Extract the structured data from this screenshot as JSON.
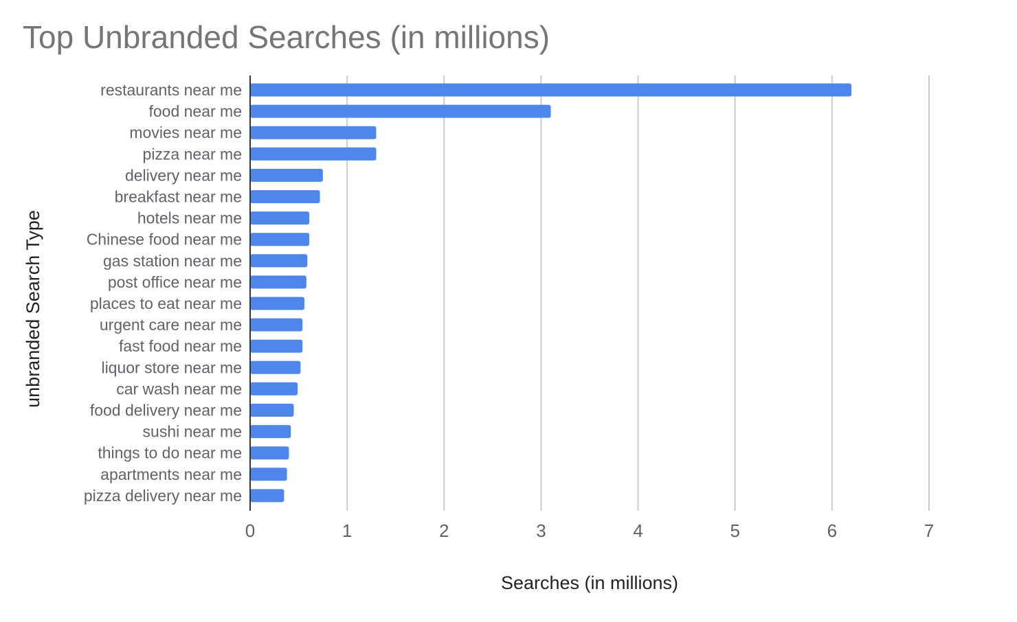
{
  "chart_data": {
    "type": "bar",
    "orientation": "horizontal",
    "title": "Top Unbranded Searches (in millions)",
    "xlabel": "Searches (in millions)",
    "ylabel": "unbranded Search Type",
    "categories": [
      "restaurants near me",
      "food near me",
      "movies near me",
      "pizza near me",
      "delivery near me",
      "breakfast near me",
      "hotels near me",
      "Chinese food near me",
      "gas station near me",
      "post office near me",
      "places to eat near me",
      "urgent care near me",
      "fast food near me",
      "liquor store near me",
      "car wash near me",
      "food delivery near me",
      "sushi near me",
      "things to do near me",
      "apartments near me",
      "pizza delivery near me"
    ],
    "values": [
      6.2,
      3.1,
      1.3,
      1.3,
      0.75,
      0.72,
      0.61,
      0.61,
      0.59,
      0.58,
      0.56,
      0.54,
      0.54,
      0.52,
      0.49,
      0.45,
      0.42,
      0.4,
      0.38,
      0.35
    ],
    "xlim": [
      0,
      7
    ],
    "xticks": [
      "0",
      "1",
      "2",
      "3",
      "4",
      "5",
      "6",
      "7"
    ],
    "grid": true,
    "bar_color": "#4f86ec"
  }
}
